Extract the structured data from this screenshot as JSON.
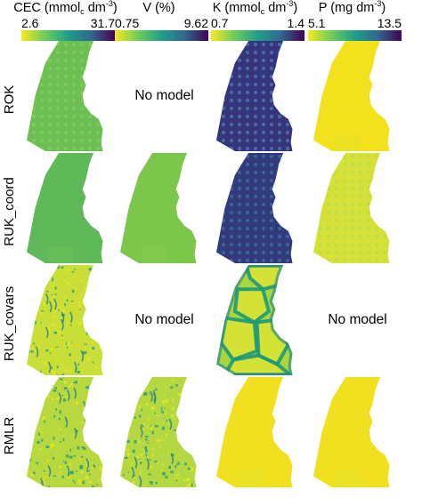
{
  "columns": [
    {
      "id": "cec",
      "title_main": "CEC (mmol",
      "title_sub": "c",
      "title_rest": " dm",
      "title_sup": "-3",
      "title_end": ")",
      "scale_min": "2.6",
      "scale_max": "31.7",
      "palette": [
        "#f7e81f",
        "#6ccd59",
        "#1f9e89",
        "#31678e",
        "#440154"
      ]
    },
    {
      "id": "v",
      "title_main": "V (%)",
      "title_sub": "",
      "title_rest": "",
      "title_sup": "",
      "title_end": "",
      "scale_min": "0.75",
      "scale_max": "9.62",
      "palette": [
        "#f7e81f",
        "#6ccd59",
        "#1f9e89",
        "#31678e",
        "#440154"
      ]
    },
    {
      "id": "k",
      "title_main": "K (mmol",
      "title_sub": "c",
      "title_rest": " dm",
      "title_sup": "-3",
      "title_end": ")",
      "scale_min": "0.7",
      "scale_max": "1.4",
      "palette": [
        "#f7e81f",
        "#6ccd59",
        "#1f9e89",
        "#31678e",
        "#440154"
      ]
    },
    {
      "id": "p",
      "title_main": "P (mg dm",
      "title_sub": "",
      "title_rest": "",
      "title_sup": "-3",
      "title_end": ")",
      "scale_min": "5.1",
      "scale_max": "13.5",
      "palette": [
        "#f7e81f",
        "#6ccd59",
        "#1f9e89",
        "#31678e",
        "#440154"
      ]
    }
  ],
  "rows": [
    {
      "label": "ROK",
      "cells": [
        {
          "model": true,
          "base": "#6dbf54",
          "dots": "#7ccc5c",
          "texture": "dots"
        },
        {
          "model": false,
          "text": "No model"
        },
        {
          "model": true,
          "base": "#35347d",
          "dots": "#4a78a2",
          "texture": "dots"
        },
        {
          "model": true,
          "base": "#f2e21e",
          "dots": "#e8e024",
          "texture": "smooth"
        }
      ]
    },
    {
      "label": "RUK_coord",
      "cells": [
        {
          "model": true,
          "base": "#5fb959",
          "dots": "#6cc25a",
          "texture": "smooth"
        },
        {
          "model": true,
          "base": "#7cc64c",
          "dots": "#86ca4c",
          "texture": "smooth"
        },
        {
          "model": true,
          "base": "#303a7c",
          "dots": "#3f6a98",
          "texture": "dots"
        },
        {
          "model": true,
          "base": "#d5e138",
          "dots": "#c2dc43",
          "texture": "dots"
        }
      ]
    },
    {
      "label": "RUK_covars",
      "cells": [
        {
          "model": true,
          "base": "#c9df37",
          "dots": "#2a9b7c",
          "texture": "speckle"
        },
        {
          "model": false,
          "text": "No model"
        },
        {
          "model": true,
          "base": "#a9d63f",
          "dots": "#1f9a7a",
          "texture": "cells"
        },
        {
          "model": false,
          "text": "No model"
        }
      ]
    },
    {
      "label": "RMLR",
      "cells": [
        {
          "model": true,
          "base": "#b7d93f",
          "dots": "#2b9a7d",
          "texture": "speckle"
        },
        {
          "model": true,
          "base": "#b4d841",
          "dots": "#2b9a7d",
          "texture": "speckle"
        },
        {
          "model": true,
          "base": "#f0e020",
          "dots": "#e6df28",
          "texture": "smooth"
        },
        {
          "model": true,
          "base": "#f0e020",
          "dots": "#e6df28",
          "texture": "smooth"
        }
      ]
    }
  ]
}
